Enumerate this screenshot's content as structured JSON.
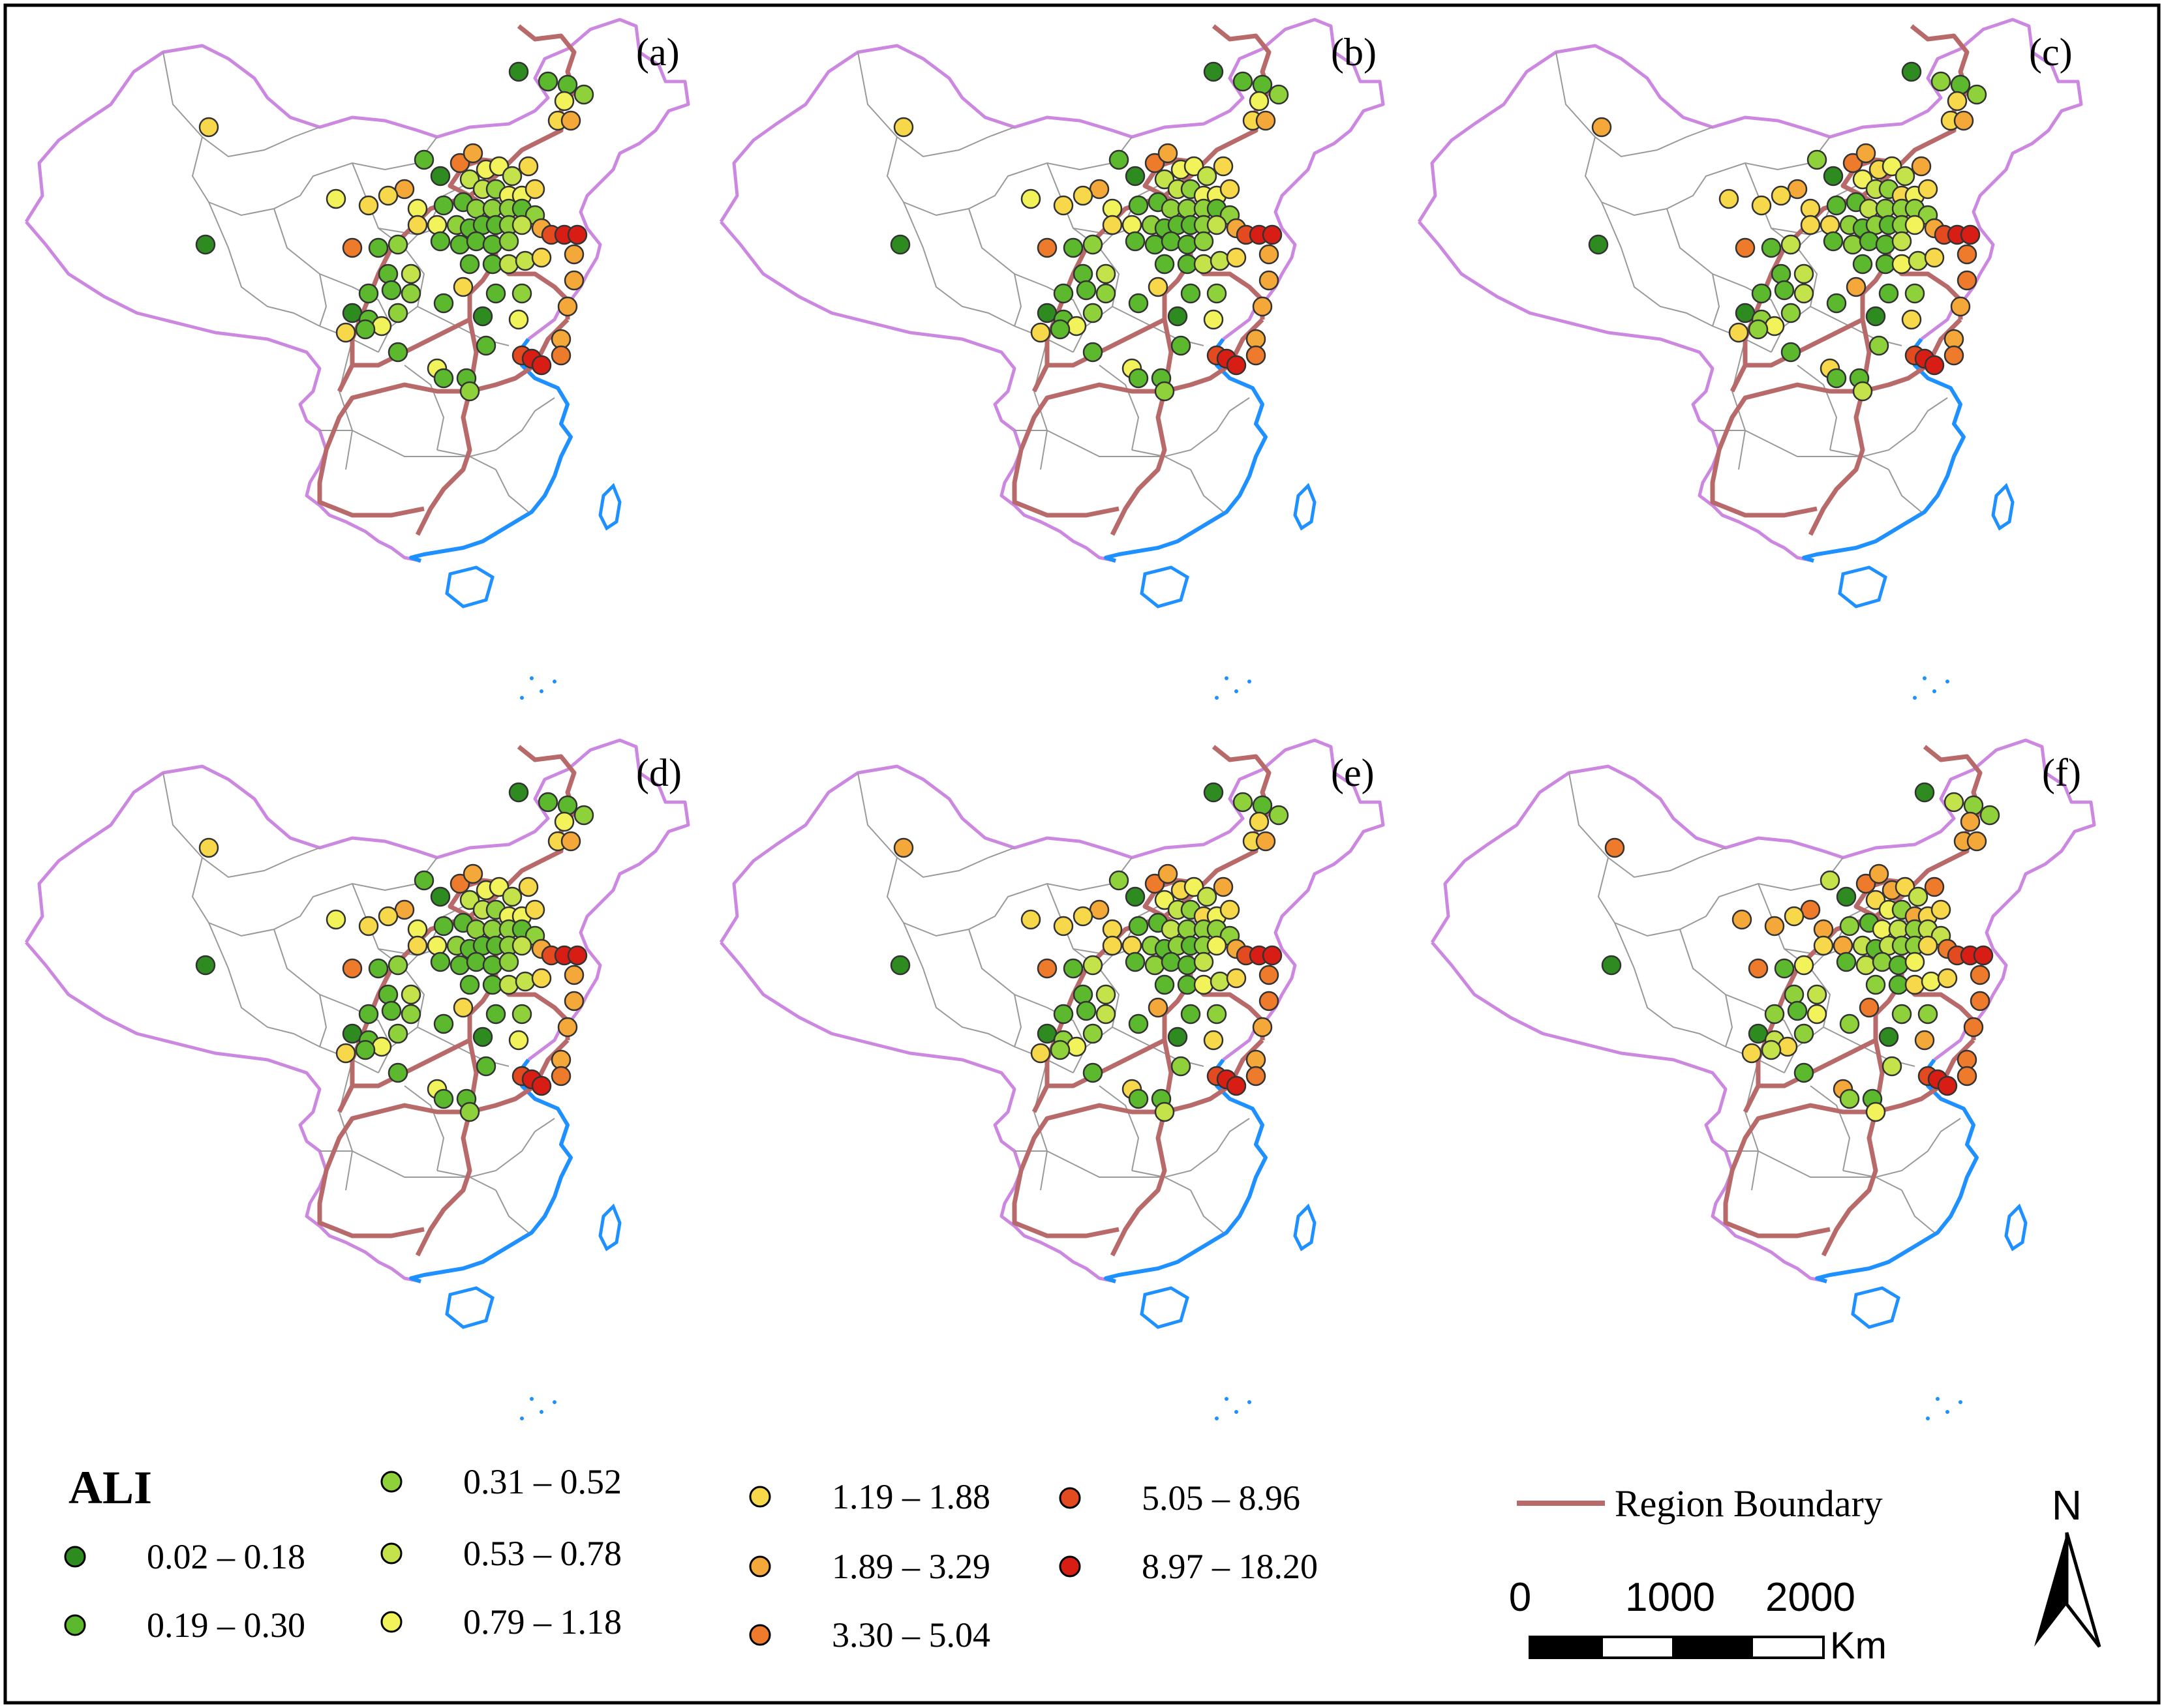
{
  "legend": {
    "title": "ALI",
    "classes": [
      {
        "label": "0.02 – 0.18",
        "color": "#2e8b1f"
      },
      {
        "label": "0.19 – 0.30",
        "color": "#5cb82c"
      },
      {
        "label": "0.31 – 0.52",
        "color": "#8fd13a"
      },
      {
        "label": "0.53 – 0.78",
        "color": "#c4e24a"
      },
      {
        "label": "0.79 – 1.18",
        "color": "#f2f25a"
      },
      {
        "label": "1.19 – 1.88",
        "color": "#f7d84a"
      },
      {
        "label": "1.89 – 3.29",
        "color": "#f5a83a"
      },
      {
        "label": "3.30 – 5.04",
        "color": "#ee7a2c"
      },
      {
        "label": "5.05 – 8.96",
        "color": "#e44a20"
      },
      {
        "label": "8.97 – 18.20",
        "color": "#d81e14"
      }
    ],
    "boundary_label": "Region Boundary",
    "boundary_color": "#b86a6a"
  },
  "panels": [
    {
      "label": "(a)",
      "shift": 0
    },
    {
      "label": "(b)",
      "shift": 0
    },
    {
      "label": "(c)",
      "shift": 1
    },
    {
      "label": "(d)",
      "shift": 0
    },
    {
      "label": "(e)",
      "shift": 1
    },
    {
      "label": "(f)",
      "shift": 2
    }
  ],
  "scale_bar": {
    "ticks": [
      "0",
      "1000",
      "2000"
    ],
    "unit": "Km"
  },
  "north_label": "N",
  "colors": {
    "coast": "#1e90ff",
    "border": "#cc88e0",
    "province": "#999999"
  }
}
